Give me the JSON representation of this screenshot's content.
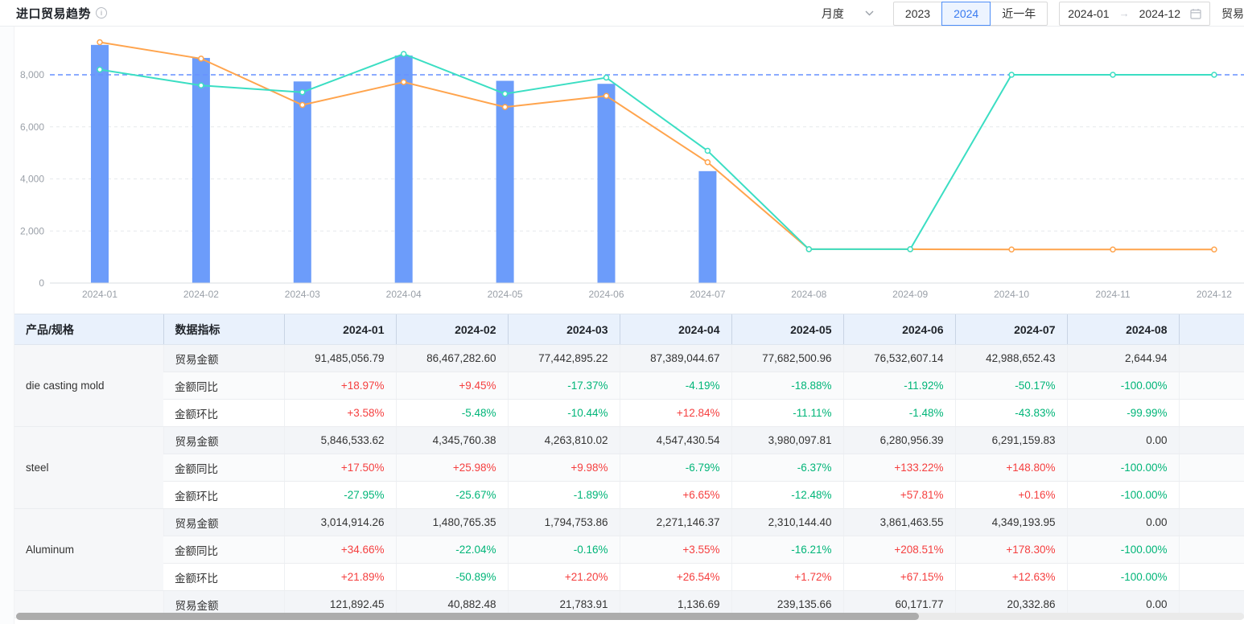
{
  "header": {
    "title": "进口贸易趋势",
    "period_select": {
      "value": "月度"
    },
    "year_buttons": [
      "2023",
      "2024",
      "近一年"
    ],
    "active_year": "2024",
    "date_range": {
      "start": "2024-01",
      "end": "2024-12"
    },
    "cutoff_label": "贸易"
  },
  "colors": {
    "bar": "#6c9cfa",
    "line_orange": "#ffa44d",
    "line_teal": "#3bdec3",
    "ref_line": "#6691ff",
    "grid": "#e5e8ec",
    "axis": "#d8dce2",
    "up_red": "#f53f3f",
    "down_green": "#00b578"
  },
  "chart_data": {
    "type": "bar",
    "categories": [
      "2024-01",
      "2024-02",
      "2024-03",
      "2024-04",
      "2024-05",
      "2024-06",
      "2024-07",
      "2024-08",
      "2024-09",
      "2024-10",
      "2024-11",
      "2024-12"
    ],
    "series": [
      {
        "name": "trade-amount-bars",
        "type": "bar",
        "color": "#6c9cfa",
        "values": [
          9148,
          8647,
          7744,
          8739,
          7768,
          7653,
          4299,
          0,
          0,
          0,
          0,
          0
        ]
      },
      {
        "name": "orange-line",
        "type": "line",
        "color": "#ffa44d",
        "values": [
          9250,
          8620,
          6840,
          7720,
          6760,
          7190,
          4640,
          1300,
          1300,
          1290,
          1290,
          1290
        ]
      },
      {
        "name": "teal-line",
        "type": "line",
        "color": "#3bdec3",
        "values": [
          8200,
          7590,
          7330,
          8800,
          7270,
          7890,
          5080,
          1300,
          1300,
          8000,
          8000,
          8000
        ]
      }
    ],
    "title": "进口贸易趋势",
    "xlabel": "",
    "ylabel": "",
    "yticks": [
      0,
      2000,
      4000,
      6000,
      8000
    ],
    "ylim": [
      0,
      9600
    ],
    "ref_line": 8000,
    "grid": "dashed",
    "legend": "none"
  },
  "table": {
    "col_product": "产品/规格",
    "col_metric": "数据指标",
    "months": [
      "2024-01",
      "2024-02",
      "2024-03",
      "2024-04",
      "2024-05",
      "2024-06",
      "2024-07",
      "2024-08"
    ],
    "metric_labels": {
      "amount": "贸易金额",
      "yoy": "金额同比",
      "mom": "金额环比"
    },
    "products": [
      {
        "name": "die casting mold",
        "amount": [
          "91,485,056.79",
          "86,467,282.60",
          "77,442,895.22",
          "87,389,044.67",
          "77,682,500.96",
          "76,532,607.14",
          "42,988,652.43",
          "2,644.94"
        ],
        "yoy": [
          "+18.97%",
          "+9.45%",
          "-17.37%",
          "-4.19%",
          "-18.88%",
          "-11.92%",
          "-50.17%",
          "-100.00%"
        ],
        "mom": [
          "+3.58%",
          "-5.48%",
          "-10.44%",
          "+12.84%",
          "-11.11%",
          "-1.48%",
          "-43.83%",
          "-99.99%"
        ]
      },
      {
        "name": "steel",
        "amount": [
          "5,846,533.62",
          "4,345,760.38",
          "4,263,810.02",
          "4,547,430.54",
          "3,980,097.81",
          "6,280,956.39",
          "6,291,159.83",
          "0.00"
        ],
        "yoy": [
          "+17.50%",
          "+25.98%",
          "+9.98%",
          "-6.79%",
          "-6.37%",
          "+133.22%",
          "+148.80%",
          "-100.00%"
        ],
        "mom": [
          "-27.95%",
          "-25.67%",
          "-1.89%",
          "+6.65%",
          "-12.48%",
          "+57.81%",
          "+0.16%",
          "-100.00%"
        ]
      },
      {
        "name": "Aluminum",
        "amount": [
          "3,014,914.26",
          "1,480,765.35",
          "1,794,753.86",
          "2,271,146.37",
          "2,310,144.40",
          "3,861,463.55",
          "4,349,193.95",
          "0.00"
        ],
        "yoy": [
          "+34.66%",
          "-22.04%",
          "-0.16%",
          "+3.55%",
          "-16.21%",
          "+208.51%",
          "+178.30%",
          "-100.00%"
        ],
        "mom": [
          "+21.89%",
          "-50.89%",
          "+21.20%",
          "+26.54%",
          "+1.72%",
          "+67.15%",
          "+12.63%",
          "-100.00%"
        ]
      },
      {
        "name": "",
        "amount": [
          "121,892.45",
          "40,882.48",
          "21,783.91",
          "1,136.69",
          "239,135.66",
          "60,171.77",
          "20,332.86",
          "0.00"
        ]
      }
    ]
  }
}
